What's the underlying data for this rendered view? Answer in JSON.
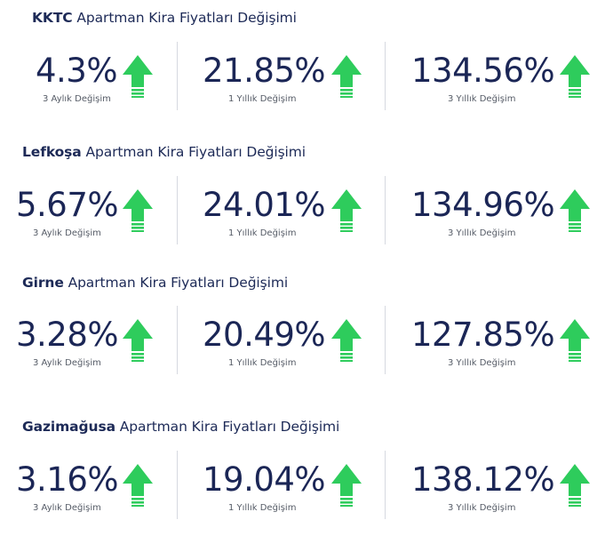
{
  "colors": {
    "accent_up": "#2ecc5c",
    "text": "#1b2656"
  },
  "title_suffix": "Apartman Kira Fiyatları Değişimi",
  "sections": [
    {
      "region": "KKTC",
      "metrics": [
        {
          "value": "4.3%",
          "label": "3 Aylık Değişim",
          "trend": "up"
        },
        {
          "value": "21.85%",
          "label": "1 Yıllık Değişim",
          "trend": "up"
        },
        {
          "value": "134.56%",
          "label": "3 Yıllık Değişim",
          "trend": "up"
        }
      ]
    },
    {
      "region": "Lefkoşa",
      "metrics": [
        {
          "value": "5.67%",
          "label": "3 Aylık Değişim",
          "trend": "up"
        },
        {
          "value": "24.01%",
          "label": "1 Yıllık Değişim",
          "trend": "up"
        },
        {
          "value": "134.96%",
          "label": "3 Yıllık Değişim",
          "trend": "up"
        }
      ]
    },
    {
      "region": "Girne",
      "metrics": [
        {
          "value": "3.28%",
          "label": "3 Aylık Değişim",
          "trend": "up"
        },
        {
          "value": "20.49%",
          "label": "1 Yıllık Değişim",
          "trend": "up"
        },
        {
          "value": "127.85%",
          "label": "3 Yıllık Değişim",
          "trend": "up"
        }
      ]
    },
    {
      "region": "Gazimağusa",
      "metrics": [
        {
          "value": "3.16%",
          "label": "3 Aylık Değişim",
          "trend": "up"
        },
        {
          "value": "19.04%",
          "label": "1 Yıllık Değişim",
          "trend": "up"
        },
        {
          "value": "138.12%",
          "label": "3 Yıllık Değişim",
          "trend": "up"
        }
      ]
    }
  ]
}
